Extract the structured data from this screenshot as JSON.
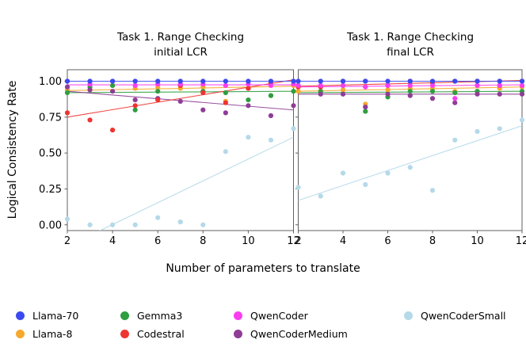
{
  "chart_data": {
    "type": "scatter",
    "xlabel": "Number of parameters to translate",
    "ylabel": "Logical Consistency Rate",
    "x": [
      2,
      3,
      4,
      5,
      6,
      7,
      8,
      9,
      10,
      11,
      12
    ],
    "xtick_labels": [
      "2",
      "4",
      "6",
      "8",
      "10",
      "12"
    ],
    "xticks": [
      2,
      4,
      6,
      8,
      10,
      12
    ],
    "ytick_labels": [
      "0.00",
      "0.25",
      "0.50",
      "0.75",
      "1.00"
    ],
    "yticks": [
      0.0,
      0.25,
      0.5,
      0.75,
      1.0
    ],
    "xlim": [
      2,
      12
    ],
    "ylim": [
      -0.04,
      1.08
    ],
    "grid": false,
    "legend_position": "bottom",
    "panels": [
      {
        "title_line1": "Task 1. Range Checking",
        "title_line2": "initial LCR",
        "series": [
          {
            "name": "Llama-70",
            "color": "#3a4af0",
            "values": [
              1.0,
              1.0,
              1.0,
              1.0,
              1.0,
              1.0,
              1.0,
              1.0,
              1.0,
              1.0,
              1.0
            ],
            "trend": [
              1.0,
              1.0
            ]
          },
          {
            "name": "Llama-8",
            "color": "#f7a92d",
            "values": [
              0.94,
              0.94,
              0.97,
              0.95,
              0.96,
              0.95,
              0.96,
              0.86,
              0.95,
              0.9,
              0.97
            ],
            "trend": [
              0.935,
              0.965
            ]
          },
          {
            "name": "Gemma3",
            "color": "#2f9e41",
            "values": [
              0.92,
              0.96,
              0.97,
              0.8,
              0.93,
              0.97,
              0.93,
              0.92,
              0.87,
              0.9,
              0.93
            ],
            "trend": [
              0.92,
              0.93
            ]
          },
          {
            "name": "Codestral",
            "color": "#ee3431",
            "values": [
              0.78,
              0.73,
              0.66,
              0.83,
              0.87,
              0.97,
              0.92,
              0.85,
              0.95,
              0.99,
              1.0
            ],
            "trend": [
              0.75,
              1.01
            ]
          },
          {
            "name": "QwenCoder",
            "color": "#fa3df0",
            "values": [
              1.0,
              0.98,
              1.0,
              0.97,
              0.98,
              0.98,
              0.98,
              0.97,
              0.98,
              0.97,
              0.98
            ],
            "trend": [
              0.975,
              0.975
            ]
          },
          {
            "name": "QwenCoderMedium",
            "color": "#8e3d97",
            "values": [
              0.96,
              0.94,
              0.93,
              0.87,
              0.88,
              0.86,
              0.8,
              0.78,
              0.83,
              0.76,
              0.83
            ],
            "trend": [
              0.93,
              0.8
            ]
          },
          {
            "name": "QwenCoderSmall",
            "color": "#b5d9e9",
            "values": [
              0.04,
              0.0,
              0.0,
              0.0,
              0.05,
              0.02,
              0.0,
              0.51,
              0.61,
              0.59,
              0.67
            ],
            "trend": [
              -0.15,
              0.61
            ]
          }
        ]
      },
      {
        "title_line1": "Task 1. Range Checking",
        "title_line2": "final LCR",
        "series": [
          {
            "name": "Llama-70",
            "color": "#3a4af0",
            "values": [
              1.0,
              1.0,
              1.0,
              1.0,
              1.0,
              1.0,
              1.0,
              1.0,
              1.0,
              1.0,
              1.0
            ],
            "trend": [
              1.0,
              1.0
            ]
          },
          {
            "name": "Llama-8",
            "color": "#f7a92d",
            "values": [
              0.93,
              0.93,
              0.94,
              0.84,
              0.94,
              0.95,
              0.95,
              0.93,
              0.93,
              0.95,
              0.96
            ],
            "trend": [
              0.93,
              0.96
            ]
          },
          {
            "name": "Gemma3",
            "color": "#2f9e41",
            "values": [
              0.97,
              0.93,
              0.97,
              0.79,
              0.89,
              0.93,
              0.93,
              0.92,
              0.93,
              0.97,
              0.93
            ],
            "trend": [
              0.92,
              0.93
            ]
          },
          {
            "name": "Codestral",
            "color": "#ee3431",
            "values": [
              0.96,
              0.96,
              1.0,
              1.0,
              0.97,
              1.0,
              0.99,
              1.0,
              1.0,
              1.0,
              1.0
            ],
            "trend": [
              0.965,
              1.005
            ]
          },
          {
            "name": "QwenCoder",
            "color": "#fa3df0",
            "values": [
              0.97,
              0.97,
              0.97,
              0.96,
              0.97,
              0.97,
              0.97,
              0.88,
              0.97,
              0.97,
              0.97
            ],
            "trend": [
              0.96,
              0.975
            ]
          },
          {
            "name": "QwenCoderMedium",
            "color": "#8e3d97",
            "values": [
              0.97,
              0.91,
              0.91,
              0.82,
              0.91,
              0.9,
              0.88,
              0.85,
              0.91,
              0.91,
              0.91
            ],
            "trend": [
              0.91,
              0.91
            ]
          },
          {
            "name": "QwenCoderSmall",
            "color": "#b5d9e9",
            "values": [
              0.26,
              0.2,
              0.36,
              0.28,
              0.36,
              0.4,
              0.24,
              0.59,
              0.65,
              0.67,
              0.73
            ],
            "trend": [
              0.17,
              0.69
            ]
          }
        ]
      }
    ],
    "legend": {
      "items": [
        {
          "label": "Llama-70",
          "color": "#3a4af0"
        },
        {
          "label": "Llama-8",
          "color": "#f7a92d"
        },
        {
          "label": "Gemma3",
          "color": "#2f9e41"
        },
        {
          "label": "Codestral",
          "color": "#ee3431"
        },
        {
          "label": "QwenCoder",
          "color": "#fa3df0"
        },
        {
          "label": "QwenCoderMedium",
          "color": "#8e3d97"
        },
        {
          "label": "QwenCoderSmall",
          "color": "#b5d9e9"
        }
      ]
    },
    "spine_color": "#606060"
  }
}
